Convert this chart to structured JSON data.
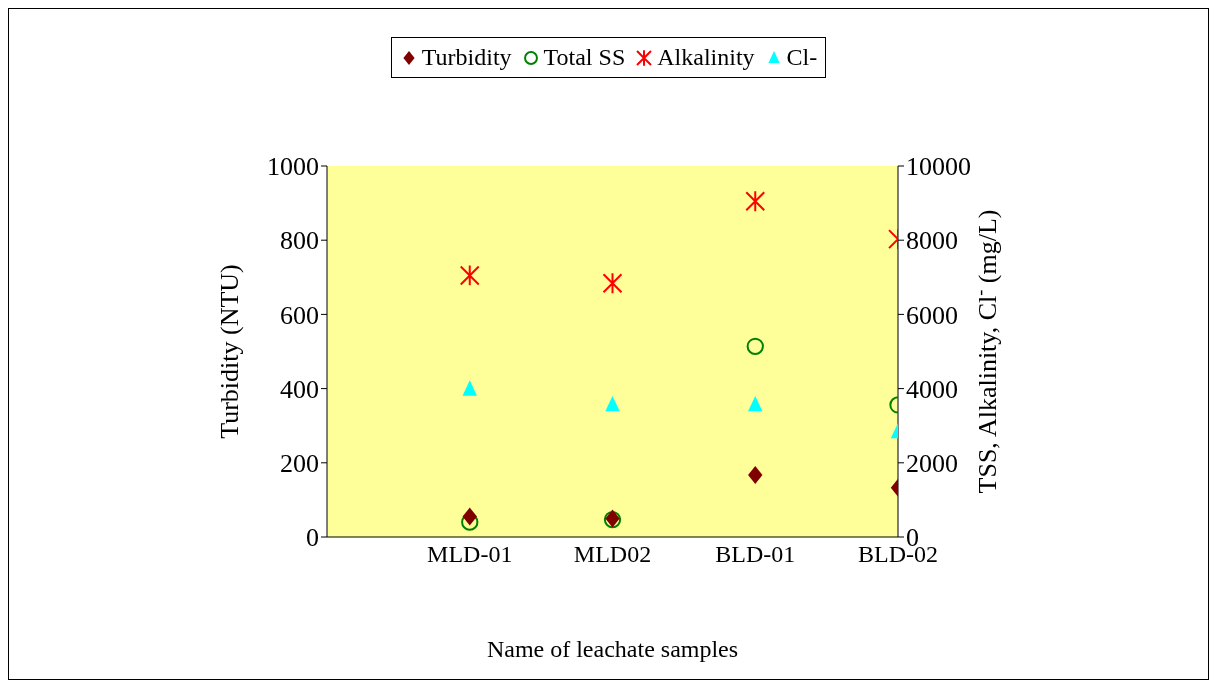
{
  "chart_data": {
    "type": "scatter",
    "xlabel": "Name of leachate samples",
    "ylabel": "Turbidity (NTU)",
    "y2label": "TSS, Alkalinity, Cl$^{-}$ (mg/L)",
    "categories": [
      "MLD-01",
      "MLD02",
      "BLD-01",
      "BLD-02"
    ],
    "series": [
      {
        "name": "Turbidity",
        "color": "#800000",
        "marker": "diamond",
        "values": [
          55,
          50,
          167,
          133
        ]
      },
      {
        "name": "Total SS",
        "color": "#008000",
        "marker": "circle",
        "axis": "y2",
        "values": [
          400,
          470,
          5140,
          3560
        ]
      },
      {
        "name": "Alkalinity",
        "color": "#ff0000",
        "marker": "cross",
        "axis": "y2",
        "values": [
          7050,
          6840,
          9050,
          8030
        ]
      },
      {
        "name": "Cl-",
        "color": "#00ffff",
        "marker": "triangle",
        "axis": "y2",
        "values": [
          3980,
          3560,
          3560,
          2830
        ]
      }
    ],
    "ylim": [
      0,
      1000
    ],
    "yticks": [
      0,
      200,
      400,
      600,
      800,
      1000
    ],
    "y2lim": [
      0,
      10000
    ],
    "y2ticks": [
      0,
      2000,
      4000,
      6000,
      8000,
      10000
    ],
    "legend": "top",
    "grid": false
  }
}
